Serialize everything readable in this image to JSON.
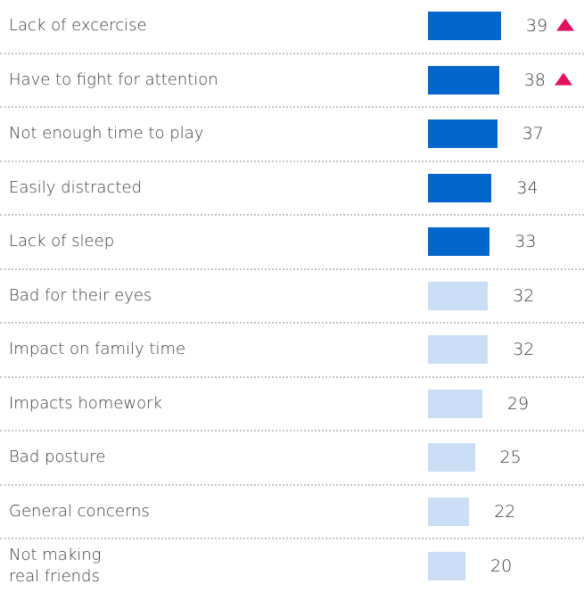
{
  "chart_data": {
    "type": "bar",
    "orientation": "horizontal",
    "categories": [
      "Lack of excercise",
      "Have to fight for attention",
      "Not enough time to play",
      "Easily distracted",
      "Lack of sleep",
      "Bad for their eyes",
      "Impact on family time",
      "Impacts homework",
      "Bad posture",
      "General concerns",
      "Not making\nreal friends"
    ],
    "values": [
      39,
      38,
      37,
      34,
      33,
      32,
      32,
      29,
      25,
      22,
      20
    ],
    "colors": [
      "#0066cc",
      "#0066cc",
      "#0066cc",
      "#0066cc",
      "#0066cc",
      "#c9def5",
      "#c9def5",
      "#c9def5",
      "#c9def5",
      "#c9def5",
      "#c9def5"
    ],
    "trend": [
      "up",
      "up",
      null,
      null,
      null,
      null,
      null,
      null,
      null,
      null,
      null
    ],
    "trend_color": "#e0115f"
  }
}
